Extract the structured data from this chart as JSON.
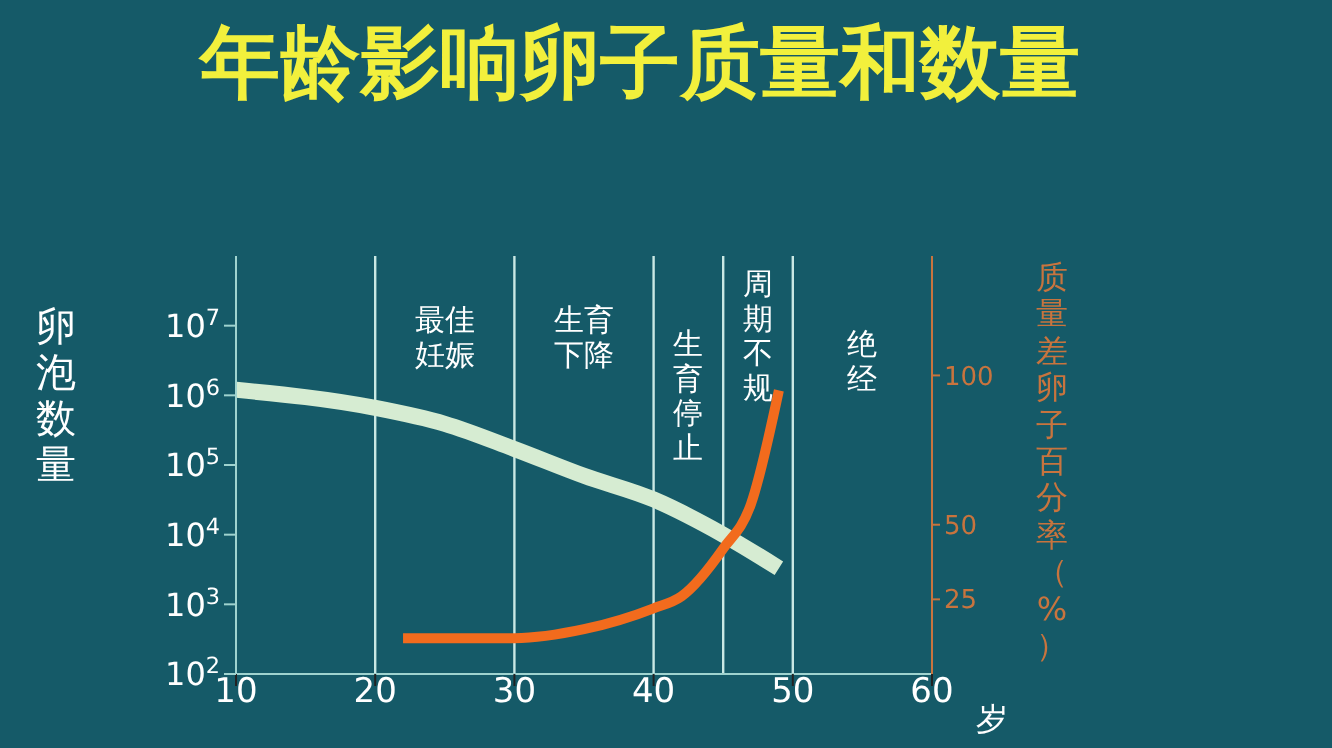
{
  "chart_data": {
    "type": "line",
    "title": "年龄影响卵子质量和数量",
    "xlabel": "岁",
    "ylabel": "卵泡数量",
    "y2label": "质量差卵子百分率（%）",
    "series": [
      {
        "color": "#d6ecd2",
        "x": [
          10,
          20,
          25,
          30,
          35,
          40,
          45,
          49
        ],
        "values": [
          1200000,
          660000,
          390000,
          170000,
          70000,
          32000,
          10000,
          3300
        ]
      },
      {
        "color": "#f26b1d",
        "axis": "y2",
        "x": [
          22,
          25,
          30,
          35,
          40,
          42,
          45,
          47,
          49
        ],
        "values": [
          12,
          12,
          12,
          15,
          22,
          26,
          42,
          57,
          95
        ]
      }
    ],
    "xlim": [
      10,
      60
    ],
    "xticks": [
      10,
      20,
      30,
      40,
      50,
      60
    ],
    "log": "y",
    "ylim": [
      100,
      100000000
    ],
    "yticks": [
      {
        "value": 100,
        "label": "10$^{2}$"
      },
      {
        "value": 1000,
        "label": "10$^{3}$"
      },
      {
        "value": 10000,
        "label": "10$^{4}$"
      },
      {
        "value": 100000,
        "label": "10$^{5}$"
      },
      {
        "value": 1000000,
        "label": "10$^{6}$"
      },
      {
        "value": 10000000,
        "label": "10$^{7}$"
      }
    ],
    "y2lim": [
      0,
      140
    ],
    "y2ticks": [
      25,
      50,
      100
    ],
    "ref_lines": [
      {
        "axis": "x",
        "value": 20,
        "label": "最佳妊娠"
      },
      {
        "axis": "x",
        "value": 30,
        "label": "生育下降"
      },
      {
        "axis": "x",
        "value": 40,
        "label": "生育停止"
      },
      {
        "axis": "x",
        "value": 45,
        "label": "周期不规"
      },
      {
        "axis": "x",
        "value": 50,
        "label": "绝经"
      }
    ],
    "grid": false,
    "legend": false,
    "marker": "none",
    "line_style": "solid"
  }
}
